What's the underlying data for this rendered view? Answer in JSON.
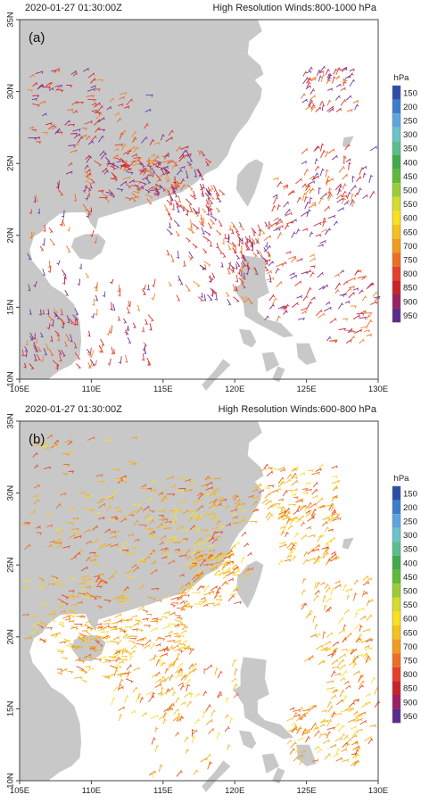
{
  "panels": [
    {
      "id": "a",
      "label": "(a)",
      "timestamp": "2020-01-27 01:30:00Z",
      "title": "High Resolution Winds:800-1000 hPa"
    },
    {
      "id": "b",
      "label": "(b)",
      "timestamp": "2020-01-27 01:30:00Z",
      "title": "High Resolution Winds:600-800 hPa"
    }
  ],
  "axes": {
    "lon_ticks": [
      "105E",
      "110E",
      "115E",
      "120E",
      "125E",
      "130E"
    ],
    "lat_ticks": [
      "35N",
      "30N",
      "25N",
      "20N",
      "15N",
      "10N"
    ]
  },
  "legend": {
    "unit": "hPa",
    "levels": [
      "150",
      "200",
      "250",
      "300",
      "350",
      "400",
      "450",
      "500",
      "550",
      "600",
      "650",
      "700",
      "750",
      "800",
      "850",
      "900",
      "950"
    ],
    "colors": [
      "#2b4fa8",
      "#3d7ccc",
      "#5aa7dd",
      "#6cc2c8",
      "#5bbd8c",
      "#3faa4a",
      "#5fba3a",
      "#9ccc34",
      "#d5dc2a",
      "#f7e21c",
      "#f5c21a",
      "#f29a1c",
      "#ee6e22",
      "#e63e2a",
      "#c8232b",
      "#9a2060",
      "#5a2a8c"
    ]
  },
  "colors": {
    "land": "#c8c8c8",
    "sea": "#ffffff",
    "frame": "#444444"
  }
}
